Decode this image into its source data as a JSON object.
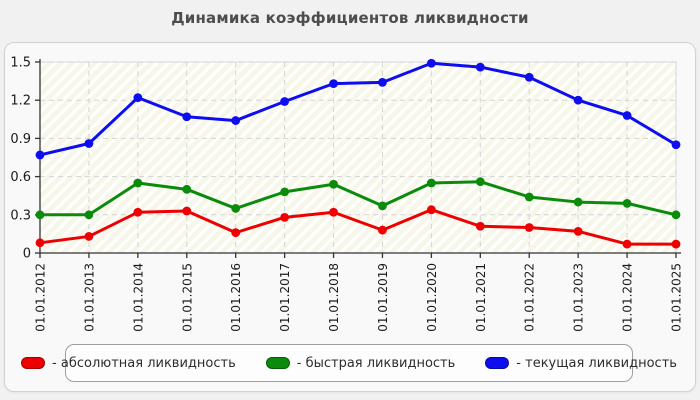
{
  "header": {
    "title": "Динамика коэффициентов ликвидности"
  },
  "chart_data": {
    "type": "line",
    "title": "Динамика коэффициентов ликвидности",
    "x_categories": [
      "01.01.2012",
      "01.01.2013",
      "01.01.2014",
      "01.01.2015",
      "01.01.2016",
      "01.01.2017",
      "01.01.2018",
      "01.01.2019",
      "01.01.2020",
      "01.01.2021",
      "01.01.2022",
      "01.01.2023",
      "01.01.2024",
      "01.01.2025"
    ],
    "yticks": [
      "0",
      "0.3",
      "0.6",
      "0.9",
      "1.2",
      "1.5"
    ],
    "ytick_values": [
      0,
      0.3,
      0.6,
      0.9,
      1.2,
      1.5
    ],
    "ylim": [
      0,
      1.5
    ],
    "grid": "dashed",
    "legend_position": "bottom",
    "series": [
      {
        "name": "абсолютная ликвидность",
        "legend_label": "- абсолютная ликвидность",
        "color": "#ee0000",
        "values": [
          0.08,
          0.13,
          0.32,
          0.33,
          0.16,
          0.28,
          0.32,
          0.18,
          0.34,
          0.21,
          0.2,
          0.17,
          0.07,
          0.07
        ]
      },
      {
        "name": "быстрая ликвидность",
        "legend_label": "- быстрая ликвидность",
        "color": "#0b8b0b",
        "values": [
          0.3,
          0.3,
          0.55,
          0.5,
          0.35,
          0.48,
          0.54,
          0.37,
          0.55,
          0.56,
          0.44,
          0.4,
          0.39,
          0.3
        ]
      },
      {
        "name": "текущая ликвидность",
        "legend_label": "- текущая ликвидность",
        "color": "#0d0dee",
        "values": [
          0.77,
          0.86,
          1.22,
          1.07,
          1.04,
          1.19,
          1.33,
          1.34,
          1.49,
          1.46,
          1.38,
          1.2,
          1.08,
          0.85
        ]
      }
    ]
  }
}
